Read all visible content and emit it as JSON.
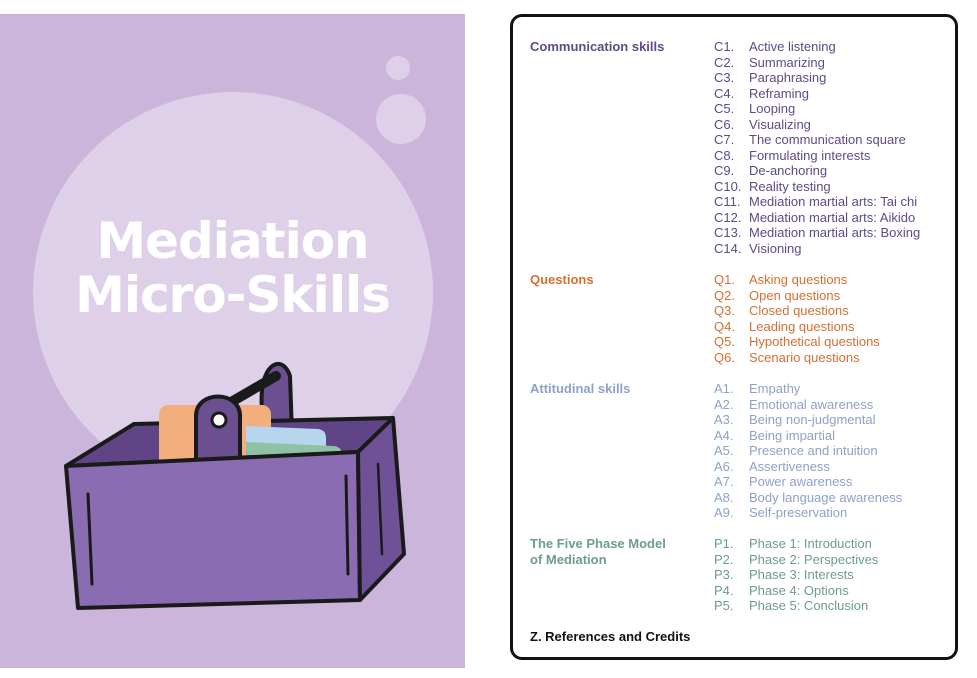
{
  "cover": {
    "title_line1": "Mediation",
    "title_line2": "Micro-Skills",
    "illustration": "basket-icon"
  },
  "toc": {
    "sections": [
      {
        "title": "Communication skills",
        "color": "#5f4a86",
        "items": [
          {
            "code": "C1.",
            "label": "Active listening"
          },
          {
            "code": "C2.",
            "label": "Summarizing"
          },
          {
            "code": "C3.",
            "label": "Paraphrasing"
          },
          {
            "code": "C4.",
            "label": "Reframing"
          },
          {
            "code": "C5.",
            "label": "Looping"
          },
          {
            "code": "C6.",
            "label": "Visualizing"
          },
          {
            "code": "C7.",
            "label": "The communication square"
          },
          {
            "code": "C8.",
            "label": "Formulating interests"
          },
          {
            "code": "C9.",
            "label": "De-anchoring"
          },
          {
            "code": "C10.",
            "label": "Reality testing"
          },
          {
            "code": "C11.",
            "label": "Mediation martial arts: Tai chi"
          },
          {
            "code": "C12.",
            "label": "Mediation martial arts: Aikido"
          },
          {
            "code": "C13.",
            "label": "Mediation martial arts: Boxing"
          },
          {
            "code": "C14.",
            "label": "Visioning"
          }
        ]
      },
      {
        "title": "Questions",
        "color": "#d36f33",
        "items": [
          {
            "code": "Q1.",
            "label": "Asking questions"
          },
          {
            "code": "Q2.",
            "label": "Open questions"
          },
          {
            "code": "Q3.",
            "label": "Closed questions"
          },
          {
            "code": "Q4.",
            "label": "Leading questions"
          },
          {
            "code": "Q5.",
            "label": "Hypothetical questions"
          },
          {
            "code": "Q6.",
            "label": "Scenario questions"
          }
        ]
      },
      {
        "title": "Attitudinal skills",
        "color": "#8da2c6",
        "items": [
          {
            "code": "A1.",
            "label": "Empathy"
          },
          {
            "code": "A2.",
            "label": "Emotional awareness"
          },
          {
            "code": "A3.",
            "label": "Being non-judgmental"
          },
          {
            "code": "A4.",
            "label": "Being impartial"
          },
          {
            "code": "A5.",
            "label": "Presence and intuition"
          },
          {
            "code": "A6.",
            "label": "Assertiveness"
          },
          {
            "code": "A7.",
            "label": "Power awareness"
          },
          {
            "code": "A8.",
            "label": "Body language awareness"
          },
          {
            "code": "A9.",
            "label": "Self-preservation"
          }
        ]
      },
      {
        "title_line1": "The Five Phase Model",
        "title_line2": "of Mediation",
        "color": "#6d9e89",
        "items": [
          {
            "code": "P1.",
            "label": "Phase 1: Introduction"
          },
          {
            "code": "P2.",
            "label": "Phase 2: Perspectives"
          },
          {
            "code": "P3.",
            "label": "Phase 3: Interests"
          },
          {
            "code": "P4.",
            "label": "Phase 4: Options"
          },
          {
            "code": "P5.",
            "label": "Phase 5: Conclusion"
          }
        ]
      }
    ],
    "references": "Z. References and Credits"
  }
}
